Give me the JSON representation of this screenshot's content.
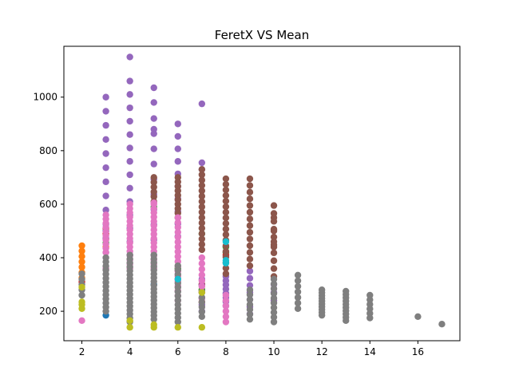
{
  "chart_data": {
    "type": "scatter",
    "title": "FeretX VS Mean",
    "xlabel": "",
    "ylabel": "",
    "xlim": [
      1.25,
      17.75
    ],
    "ylim": [
      90,
      1190
    ],
    "grid": false,
    "x_ticks": [
      2,
      4,
      6,
      8,
      10,
      12,
      14,
      16
    ],
    "y_ticks": [
      200,
      400,
      600,
      800,
      1000
    ],
    "palette": {
      "blue": "#1f77b4",
      "orange": "#ff7f0e",
      "green": "#2ca02c",
      "red": "#d62728",
      "purple": "#9467bd",
      "brown": "#8c564b",
      "pink": "#e377c2",
      "gray": "#7f7f7f",
      "olive": "#bcbd22",
      "cyan": "#17becf"
    },
    "series": [
      {
        "color": "#1f77b4",
        "points": [
          [
            3,
            185
          ],
          [
            3,
            500
          ],
          [
            5,
            300
          ],
          [
            7,
            300
          ]
        ]
      },
      {
        "color": "#ff7f0e",
        "points": [
          [
            2,
            445
          ],
          [
            2,
            425
          ],
          [
            2,
            405
          ],
          [
            2,
            385
          ],
          [
            2,
            365
          ],
          [
            2,
            345
          ],
          [
            2,
            325
          ],
          [
            3,
            470
          ],
          [
            3,
            440
          ],
          [
            7,
            280
          ]
        ]
      },
      {
        "color": "#2ca02c",
        "points": [
          [
            3,
            455
          ],
          [
            5,
            590
          ],
          [
            6,
            360
          ],
          [
            7,
            280
          ],
          [
            7,
            490
          ],
          [
            8,
            420
          ],
          [
            8,
            440
          ]
        ]
      },
      {
        "color": "#d62728",
        "points": [
          [
            2,
            310
          ],
          [
            3,
            490
          ],
          [
            3,
            510
          ],
          [
            7,
            235
          ],
          [
            7,
            300
          ],
          [
            8,
            410
          ]
        ]
      },
      {
        "color": "#9467bd",
        "ranges": [
          [
            3,
            420,
            1000,
            12
          ],
          [
            4,
            410,
            1060,
            14
          ],
          [
            4,
            1150,
            1150,
            1
          ],
          [
            5,
            410,
            920,
            10
          ],
          [
            5,
            1035,
            1035,
            1
          ],
          [
            6,
            480,
            900,
            10
          ],
          [
            7,
            200,
            320,
            6
          ],
          [
            7,
            730,
            755,
            2
          ],
          [
            7,
            975,
            975,
            1
          ],
          [
            8,
            220,
            330,
            8
          ],
          [
            9,
            190,
            350,
            7
          ],
          [
            10,
            240,
            300,
            3
          ]
        ],
        "points": [
          [
            5,
            880
          ],
          [
            5,
            980
          ]
        ]
      },
      {
        "color": "#8c564b",
        "ranges": [
          [
            5,
            610,
            700,
            6
          ],
          [
            6,
            550,
            700,
            10
          ],
          [
            7,
            430,
            730,
            16
          ],
          [
            8,
            340,
            695,
            18
          ],
          [
            9,
            370,
            695,
            14
          ],
          [
            10,
            330,
            595,
            10
          ]
        ],
        "points": [
          [
            10,
            440
          ],
          [
            10,
            460
          ],
          [
            10,
            500
          ],
          [
            10,
            550
          ]
        ]
      },
      {
        "color": "#e377c2",
        "ranges": [
          [
            3,
            420,
            560,
            10
          ],
          [
            4,
            360,
            600,
            16
          ],
          [
            5,
            360,
            600,
            16
          ],
          [
            6,
            240,
            550,
            18
          ],
          [
            7,
            250,
            400,
            8
          ],
          [
            8,
            160,
            260,
            6
          ]
        ],
        "points": [
          [
            2,
            165
          ],
          [
            5,
            605
          ],
          [
            3,
            360
          ]
        ]
      },
      {
        "color": "#7f7f7f",
        "ranges": [
          [
            2,
            260,
            340,
            5
          ],
          [
            3,
            200,
            400,
            14
          ],
          [
            4,
            160,
            410,
            18
          ],
          [
            5,
            170,
            410,
            18
          ],
          [
            6,
            160,
            370,
            14
          ],
          [
            7,
            180,
            270,
            6
          ],
          [
            9,
            170,
            280,
            7
          ],
          [
            10,
            160,
            320,
            10
          ],
          [
            11,
            210,
            335,
            7
          ],
          [
            12,
            185,
            280,
            10
          ],
          [
            13,
            165,
            275,
            10
          ],
          [
            14,
            175,
            260,
            6
          ]
        ],
        "points": [
          [
            16,
            180
          ],
          [
            17,
            152
          ]
        ]
      },
      {
        "color": "#bcbd22",
        "points": [
          [
            2,
            210
          ],
          [
            2,
            225
          ],
          [
            2,
            235
          ],
          [
            2,
            290
          ],
          [
            4,
            140
          ],
          [
            4,
            165
          ],
          [
            5,
            140
          ],
          [
            5,
            150
          ],
          [
            6,
            140
          ],
          [
            7,
            140
          ],
          [
            7,
            270
          ]
        ]
      },
      {
        "color": "#17becf",
        "points": [
          [
            8,
            380
          ],
          [
            8,
            390
          ],
          [
            8,
            460
          ],
          [
            6,
            320
          ]
        ]
      }
    ]
  }
}
